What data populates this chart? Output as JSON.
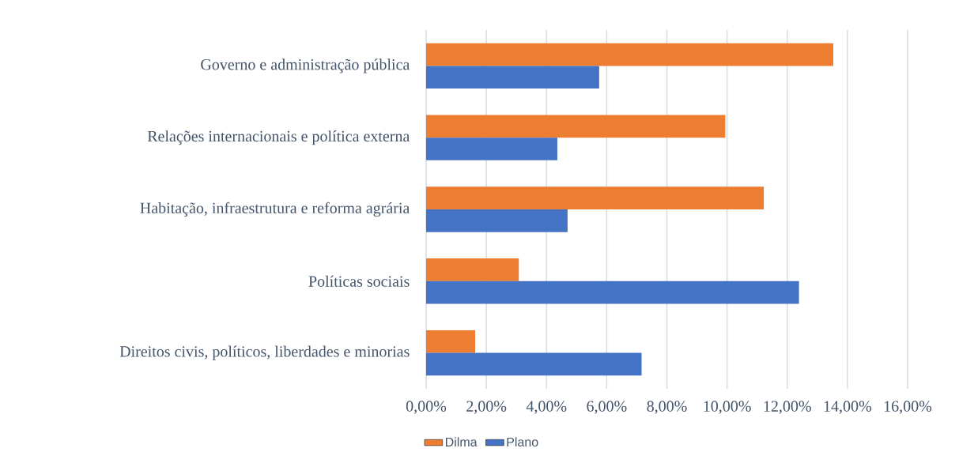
{
  "chart_data": {
    "type": "bar",
    "orientation": "horizontal",
    "categories": [
      "Governo e administração pública",
      "Relações internacionais e política externa",
      "Habitação, infraestrutura e reforma agrária",
      "Políticas sociais",
      "Direitos civis, políticos, liberdades e minorias"
    ],
    "series": [
      {
        "name": "Dilma",
        "color": "#ed7d31",
        "values": [
          13.53,
          9.94,
          11.22,
          3.08,
          1.63
        ]
      },
      {
        "name": "Plano",
        "color": "#4472c4",
        "values": [
          5.75,
          4.36,
          4.7,
          12.39,
          7.16
        ]
      }
    ],
    "xlim": [
      0,
      16
    ],
    "xticks": [
      {
        "value": 0,
        "label": "0,00%"
      },
      {
        "value": 2,
        "label": "2,00%"
      },
      {
        "value": 4,
        "label": "4,00%"
      },
      {
        "value": 6,
        "label": "6,00%"
      },
      {
        "value": 8,
        "label": "8,00%"
      },
      {
        "value": 10,
        "label": "10,00%"
      },
      {
        "value": 12,
        "label": "12,00%"
      },
      {
        "value": 14,
        "label": "14,00%"
      },
      {
        "value": 16,
        "label": "16,00%"
      }
    ],
    "grid": "x",
    "legend": "bottom"
  }
}
